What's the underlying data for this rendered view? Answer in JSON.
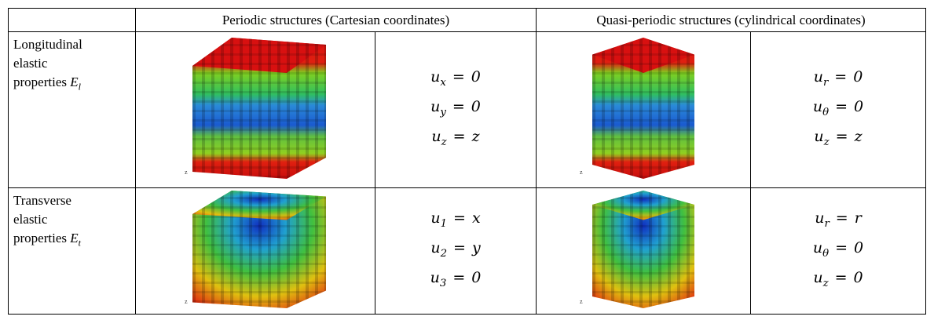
{
  "header": {
    "periodic": "Periodic structures (Cartesian coordinates)",
    "quasi": "Quasi-periodic structures (cylindrical coordinates)"
  },
  "rows": [
    {
      "label": [
        "Longitudinal",
        "elastic",
        "properties"
      ],
      "symbol": "E",
      "symbol_sub": "l",
      "periodic": [
        {
          "lhs": "u",
          "sub": "x",
          "rel": "=",
          "rhs": "0"
        },
        {
          "lhs": "u",
          "sub": "y",
          "rel": "=",
          "rhs": "0"
        },
        {
          "lhs": "u",
          "sub": "z",
          "rel": "=",
          "rhs": "z"
        }
      ],
      "quasi": [
        {
          "lhs": "u",
          "sub": "r",
          "rel": "=",
          "rhs": "0"
        },
        {
          "lhs": "u",
          "sub": "θ",
          "rel": "=",
          "rhs": "0"
        },
        {
          "lhs": "u",
          "sub": "z",
          "rel": "=",
          "rhs": "z"
        }
      ]
    },
    {
      "label": [
        "Transverse",
        "elastic",
        "properties"
      ],
      "symbol": "E",
      "symbol_sub": "t",
      "periodic": [
        {
          "lhs": "u",
          "sub": "1",
          "rel": "=",
          "rhs": "x"
        },
        {
          "lhs": "u",
          "sub": "2",
          "rel": "=",
          "rhs": "y"
        },
        {
          "lhs": "u",
          "sub": "3",
          "rel": "=",
          "rhs": "0"
        }
      ],
      "quasi": [
        {
          "lhs": "u",
          "sub": "r",
          "rel": "=",
          "rhs": "r"
        },
        {
          "lhs": "u",
          "sub": "θ",
          "rel": "=",
          "rhs": "0"
        },
        {
          "lhs": "u",
          "sub": "z",
          "rel": "=",
          "rhs": "0"
        }
      ]
    }
  ]
}
